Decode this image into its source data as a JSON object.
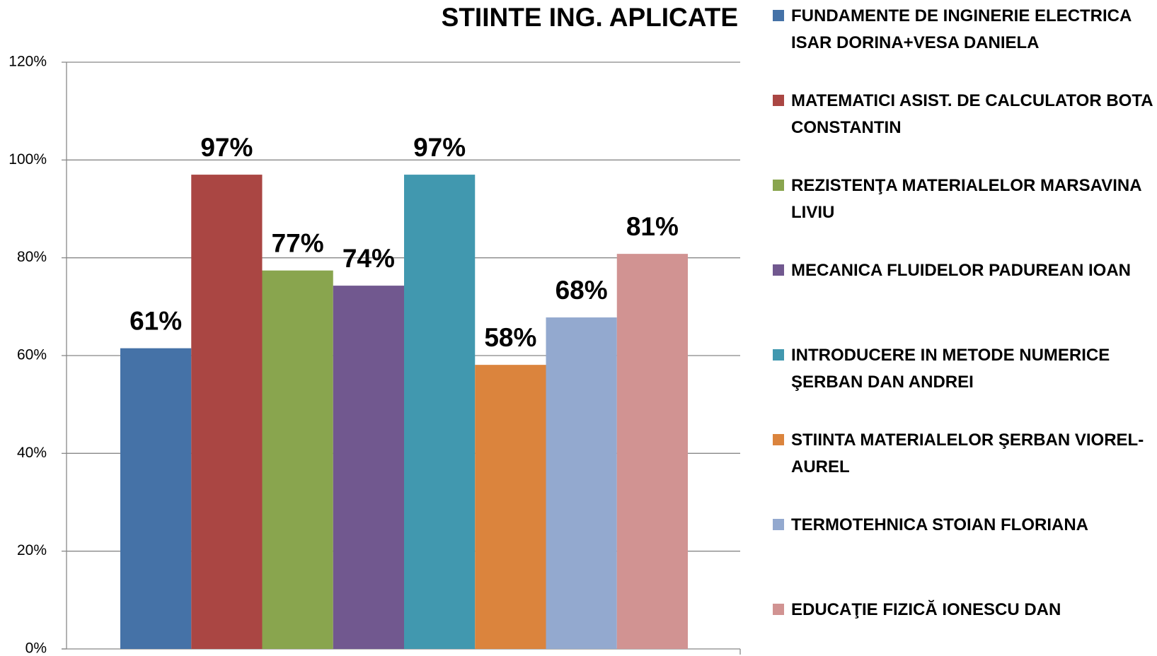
{
  "chart_data": {
    "type": "bar",
    "title": "STIINTE ING. APLICATE",
    "series": [
      {
        "name": "FUNDAMENTE DE INGINERIE ELECTRICA ISAR DORINA+VESA DANIELA",
        "color": "#4572a7",
        "values": [
          61.5
        ],
        "value_labels": [
          "61%"
        ]
      },
      {
        "name": "MATEMATICI ASIST. DE CALCULATOR BOTA CONSTANTIN",
        "color": "#aa4643",
        "values": [
          97
        ],
        "value_labels": [
          "97%"
        ]
      },
      {
        "name": "REZISTENŢA MATERIALELOR MARSAVINA LIVIU",
        "color": "#89a54e",
        "values": [
          77.4
        ],
        "value_labels": [
          "77%"
        ]
      },
      {
        "name": "MECANICA FLUIDELOR PADUREAN IOAN",
        "color": "#71588f",
        "values": [
          74.3
        ],
        "value_labels": [
          "74%"
        ]
      },
      {
        "name": "INTRODUCERE IN METODE NUMERICE ŞERBAN DAN ANDREI",
        "color": "#4198af",
        "values": [
          97
        ],
        "value_labels": [
          "97%"
        ]
      },
      {
        "name": "STIINTA MATERIALELOR ŞERBAN VIOREL-AUREL",
        "color": "#db843d",
        "values": [
          58.1
        ],
        "value_labels": [
          "58%"
        ]
      },
      {
        "name": "TERMOTEHNICA STOIAN FLORIANA",
        "color": "#93a9cf",
        "values": [
          67.8
        ],
        "value_labels": [
          "68%"
        ]
      },
      {
        "name": "EDUCAŢIE FIZICĂ IONESCU DAN",
        "color": "#d19392",
        "values": [
          80.8
        ],
        "value_labels": [
          "81%"
        ]
      }
    ],
    "ylim": [
      0,
      120
    ],
    "yticks": [
      {
        "value": 0,
        "label": "0%"
      },
      {
        "value": 20,
        "label": "20%"
      },
      {
        "value": 40,
        "label": "40%"
      },
      {
        "value": 60,
        "label": "60%"
      },
      {
        "value": 80,
        "label": "80%"
      },
      {
        "value": 100,
        "label": "100%"
      },
      {
        "value": 120,
        "label": "120%"
      }
    ],
    "grid": true,
    "legend": "right"
  }
}
